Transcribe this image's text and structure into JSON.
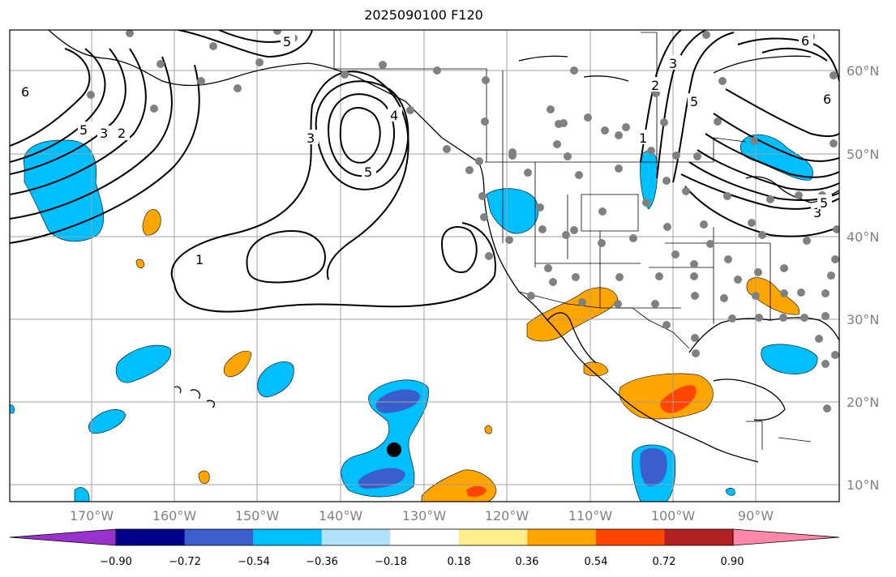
{
  "title": "2025090100 F120",
  "lat_labels": [
    "60°N",
    "50°N",
    "40°N",
    "30°N",
    "20°N",
    "10°N"
  ],
  "lon_labels": [
    "170°W",
    "160°W",
    "150°W",
    "140°W",
    "130°W",
    "120°W",
    "110°W",
    "100°W",
    "90°W"
  ],
  "contour_labels": [
    "6",
    "5",
    "3",
    "2",
    "5",
    "3",
    "4",
    "5",
    "1",
    "2",
    "3",
    "5",
    "1",
    "6",
    "3",
    "5",
    "6"
  ],
  "colorbar": {
    "ticks": [
      "−0.90",
      "−0.72",
      "−0.54",
      "−0.36",
      "−0.18",
      "0.18",
      "0.36",
      "0.54",
      "0.72",
      "0.90"
    ],
    "colors": [
      "#9932cc",
      "#00008b",
      "#3a5fcd",
      "#00bfff",
      "#b0e2ff",
      "#ffffff",
      "#ffec8b",
      "#ffa500",
      "#ff4500",
      "#b22222",
      "#ff88aa"
    ]
  },
  "features": {
    "storm_marker": "black-dot"
  }
}
